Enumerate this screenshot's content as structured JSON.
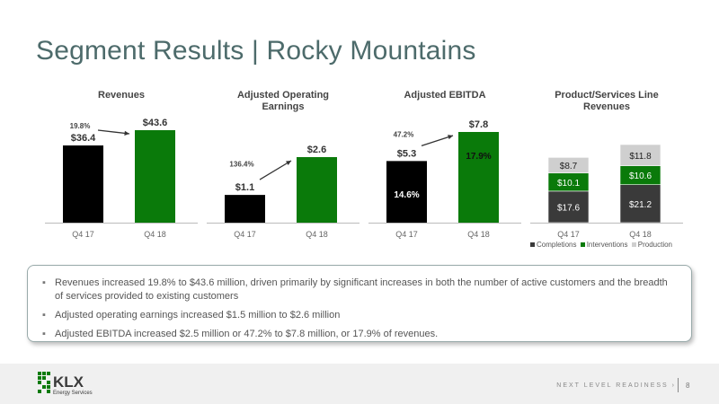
{
  "title": "Segment Results | Rocky Mountains",
  "colors": {
    "black": "#000000",
    "green": "#0a7a0a",
    "dark_gray": "#3a3a3a",
    "light_gray": "#cfcfcf",
    "title": "#4d6b6b"
  },
  "chart_data": [
    {
      "type": "bar",
      "title": "Revenues",
      "categories": [
        "Q4 17",
        "Q4 18"
      ],
      "values": [
        36.4,
        43.6
      ],
      "value_labels": [
        "$36.4",
        "$43.6"
      ],
      "growth_label": "19.8%"
    },
    {
      "type": "bar",
      "title": "Adjusted Operating Earnings",
      "categories": [
        "Q4 17",
        "Q4 18"
      ],
      "values": [
        1.1,
        2.6
      ],
      "value_labels": [
        "$1.1",
        "$2.6"
      ],
      "growth_label": "136.4%"
    },
    {
      "type": "bar",
      "title": "Adjusted EBITDA",
      "categories": [
        "Q4 17",
        "Q4 18"
      ],
      "values": [
        5.3,
        7.8
      ],
      "value_labels": [
        "$5.3",
        "$7.8"
      ],
      "margin_labels": [
        "14.6%",
        "17.9%"
      ],
      "growth_label": "47.2%"
    },
    {
      "type": "bar",
      "stacked": true,
      "title": "Product/Services Line Revenues",
      "categories": [
        "Q4 17",
        "Q4 18"
      ],
      "series": [
        {
          "name": "Completions",
          "values": [
            17.6,
            21.2
          ],
          "labels": [
            "$17.6",
            "$21.2"
          ],
          "color": "#3a3a3a"
        },
        {
          "name": "Interventions",
          "values": [
            10.1,
            10.6
          ],
          "labels": [
            "$10.1",
            "$10.6"
          ],
          "color": "#0a7a0a"
        },
        {
          "name": "Production",
          "values": [
            8.7,
            11.8
          ],
          "labels": [
            "$8.7",
            "$11.8"
          ],
          "color": "#cfcfcf"
        }
      ],
      "legend": "bottom"
    }
  ],
  "bullets": [
    "Revenues increased 19.8% to $43.6 million, driven primarily by significant increases in both the number of active customers and the breadth of services provided to existing customers",
    "Adjusted operating earnings increased $1.5 million to $2.6 million",
    "Adjusted EBITDA increased $2.5 million or 47.2% to $7.8 million, or 17.9% of revenues."
  ],
  "footer": {
    "logo_text": "KLX",
    "logo_subtext": "Energy Services",
    "tagline": "NEXT LEVEL READINESS",
    "tagline_arrow": "›",
    "page_number": "8"
  }
}
